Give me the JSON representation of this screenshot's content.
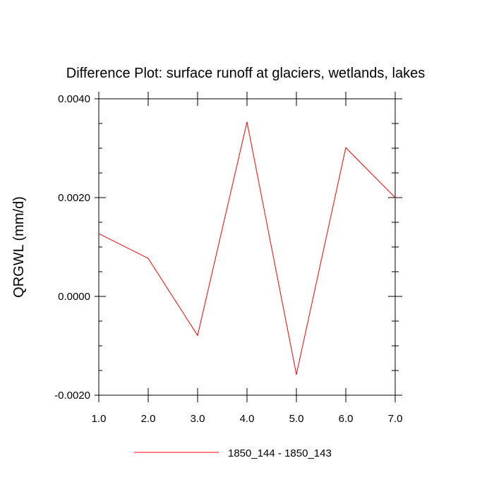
{
  "chart_data": {
    "type": "line",
    "title": "Difference Plot: surface runoff at glaciers, wetlands, lakes",
    "xlabel": "",
    "ylabel": "QRGWL  (mm/d)",
    "x": [
      1,
      2,
      3,
      4,
      5,
      6,
      7
    ],
    "xticks": [
      "1.0",
      "2.0",
      "3.0",
      "4.0",
      "5.0",
      "6.0",
      "7.0"
    ],
    "xlim": [
      1,
      7
    ],
    "ylim": [
      -0.002,
      0.004
    ],
    "yticks": [
      "0.0040",
      "0.0020",
      "0.0000",
      "-0.0020"
    ],
    "ytick_values": [
      0.004,
      0.002,
      0.0,
      -0.002
    ],
    "series": [
      {
        "name": "1850_144 - 1850_143",
        "color": "#ff0000",
        "values": [
          0.00127,
          0.00077,
          -0.00079,
          0.00353,
          -0.00158,
          0.00301,
          0.002
        ]
      }
    ],
    "grid": false,
    "legend_position": "bottom"
  }
}
